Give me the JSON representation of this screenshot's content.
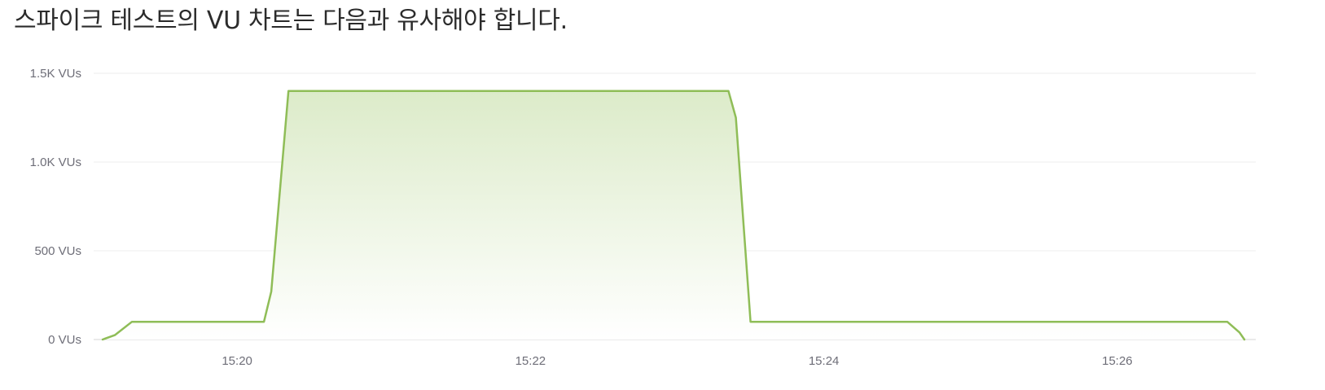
{
  "heading": "스파이크 테스트의 VU 차트는 다음과 유사해야 합니다.",
  "colors": {
    "line": "#8fbd57",
    "fill_top": "#dcebc9",
    "fill_bottom": "#ffffff",
    "grid": "#ececec",
    "baseline": "#d4d4d4",
    "tick_text": "#6e6e78"
  },
  "chart_data": {
    "type": "area",
    "title": "",
    "xlabel": "",
    "ylabel": "",
    "x_unit": "time (HH:MM:SS)",
    "ylim": [
      0,
      1500
    ],
    "xlim": [
      "15:19:05",
      "15:26:52"
    ],
    "y_ticks": [
      {
        "value": 0,
        "label": "0 VUs"
      },
      {
        "value": 500,
        "label": "500 VUs"
      },
      {
        "value": 1000,
        "label": "1.0K VUs"
      },
      {
        "value": 1500,
        "label": "1.5K VUs"
      }
    ],
    "x_ticks": [
      {
        "value": "15:20:00",
        "label": "15:20"
      },
      {
        "value": "15:22:00",
        "label": "15:22"
      },
      {
        "value": "15:24:00",
        "label": "15:24"
      },
      {
        "value": "15:26:00",
        "label": "15:26"
      }
    ],
    "grid": true,
    "legend": "none",
    "series": [
      {
        "points": [
          {
            "x": "15:19:05",
            "y": 0
          },
          {
            "x": "15:19:10",
            "y": 25
          },
          {
            "x": "15:19:17",
            "y": 100
          },
          {
            "x": "15:20:11",
            "y": 100
          },
          {
            "x": "15:20:14",
            "y": 270
          },
          {
            "x": "15:20:21",
            "y": 1400
          },
          {
            "x": "15:23:21",
            "y": 1400
          },
          {
            "x": "15:23:24",
            "y": 1250
          },
          {
            "x": "15:23:30",
            "y": 100
          },
          {
            "x": "15:26:45",
            "y": 100
          },
          {
            "x": "15:26:50",
            "y": 40
          },
          {
            "x": "15:26:52",
            "y": 0
          }
        ]
      }
    ]
  }
}
